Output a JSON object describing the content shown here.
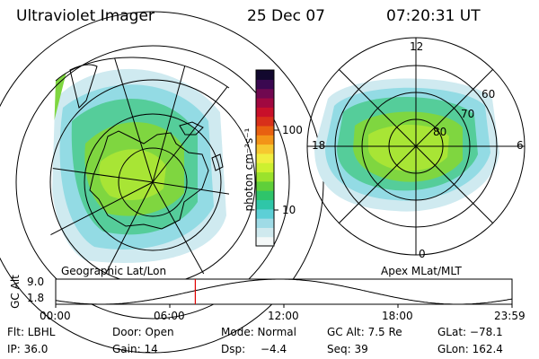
{
  "header": {
    "instrument": "Ultraviolet Imager",
    "date": "25 Dec 07",
    "time": "07:20:31 UT"
  },
  "colorbar": {
    "unit_label": "photon cm⁻²s⁻¹",
    "ticks": [
      "100",
      "10"
    ],
    "colors": [
      "#f4f8f8",
      "#cfe9ee",
      "#9fdbe6",
      "#5dcfd6",
      "#2fc6a8",
      "#2fc46a",
      "#5fcf3a",
      "#9be22c",
      "#cdf030",
      "#f0ee40",
      "#f6c830",
      "#f39418",
      "#e86010",
      "#d8301a",
      "#c8102a",
      "#a00840",
      "#700850",
      "#3a0850",
      "#12082e"
    ]
  },
  "geo_map": {
    "label": "Geographic Lat/Lon"
  },
  "apex_map": {
    "label": "Apex MLat/MLT",
    "mlt_labels": {
      "top": "12",
      "left": "18",
      "right": "6",
      "bottom": "0"
    },
    "lat_labels": [
      "60",
      "70",
      "80"
    ]
  },
  "altitude_strip": {
    "axis_label": "GC Alt",
    "y_ticks": [
      "9.0",
      "1.8"
    ],
    "x_ticks": [
      "00:00",
      "06:00",
      "12:00",
      "18:00",
      "23:59"
    ],
    "current_time_hours": 7.342,
    "orbit_period_hours": 18.75,
    "alt_range": [
      1.8,
      9.0
    ]
  },
  "info": {
    "flt": "Flt: LBHL",
    "door": "Door: Open",
    "mode": "Mode: Normal",
    "gcalt": "GC Alt: 7.5 Re",
    "glat": "GLat: −78.1",
    "ip": "IP: 36.0",
    "gain": "Gain: 14",
    "dsp_label": "Dsp:",
    "dsp_value": "−4.4",
    "seq": "Seq: 39",
    "glon": "GLon: 162.4"
  }
}
